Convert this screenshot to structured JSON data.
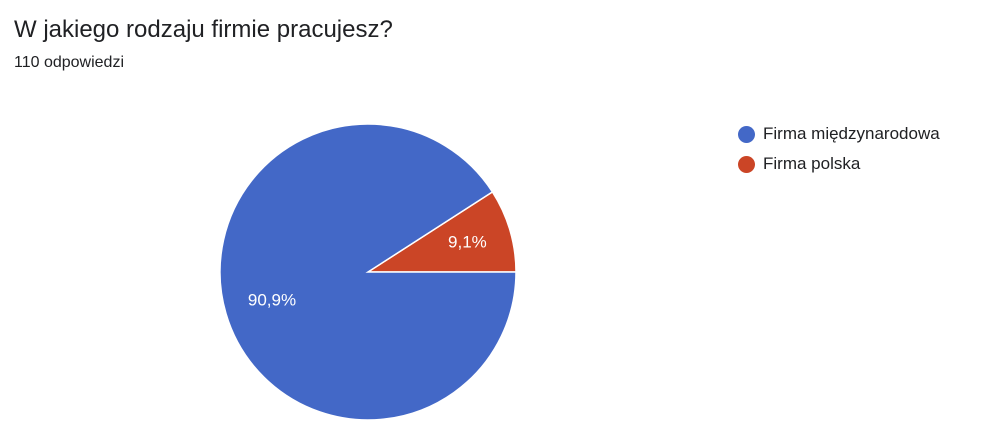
{
  "question": {
    "title": "W jakiego rodzaju firmie pracujesz?",
    "responses": "110 odpowiedzi"
  },
  "chart_data": {
    "type": "pie",
    "title": "W jakiego rodzaju firmie pracujesz?",
    "subtitle": "110 odpowiedzi",
    "slices": [
      {
        "label": "Firma międzynarodowa",
        "value": 90.9,
        "display": "90,9%",
        "color": "#4368C7"
      },
      {
        "label": "Firma polska",
        "value": 9.1,
        "display": "9,1%",
        "color": "#CB4526"
      }
    ],
    "legend_position": "right"
  }
}
